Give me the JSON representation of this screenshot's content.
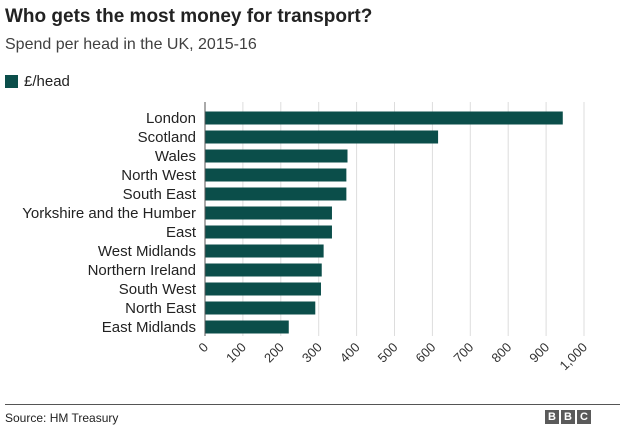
{
  "header": {
    "title": "Who gets the most money for transport?",
    "subtitle": "Spend per head in the UK, 2015-16"
  },
  "footer": {
    "source": "Source: HM Treasury",
    "logo_letters": [
      "B",
      "B",
      "C"
    ]
  },
  "colors": {
    "bar": "#0b4e4a",
    "axis": "#555555",
    "grid": "#dddddd"
  },
  "chart_data": {
    "type": "bar",
    "orientation": "horizontal",
    "categories": [
      "London",
      "Scotland",
      "Wales",
      "North West",
      "South East",
      "Yorkshire and the Humber",
      "East",
      "West Midlands",
      "Northern Ireland",
      "South West",
      "North East",
      "East Midlands"
    ],
    "series": [
      {
        "name": "£/head",
        "values": [
          944,
          615,
          376,
          373,
          373,
          335,
          335,
          313,
          308,
          306,
          291,
          221
        ]
      }
    ],
    "xlim": [
      0,
      1000
    ],
    "xticks": [
      0,
      100,
      200,
      300,
      400,
      500,
      600,
      700,
      800,
      900,
      1000
    ],
    "xtick_labels": [
      "0",
      "100",
      "200",
      "300",
      "400",
      "500",
      "600",
      "700",
      "800",
      "900",
      "1,000"
    ],
    "grid": true,
    "legend_position": "top-left"
  }
}
